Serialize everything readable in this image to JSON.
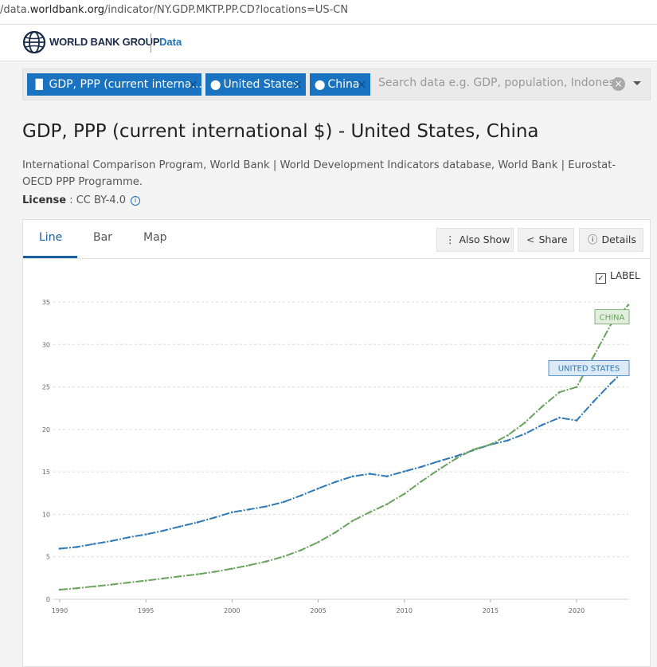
{
  "browser": {
    "url_prefix": "/data.",
    "url_host": "worldbank.org",
    "url_path": "/indicator/NY.GDP.MKTP.PP.CD?locations=US-CN"
  },
  "header": {
    "brand": "WORLD BANK GROUP",
    "section": "Data"
  },
  "search": {
    "chips": [
      {
        "label": "GDP, PPP (current interna...",
        "icon": "bar-chart-icon"
      },
      {
        "label": "United States",
        "icon": "map-marker-icon"
      },
      {
        "label": "China",
        "icon": "map-marker-icon"
      }
    ],
    "placeholder": "Search data e.g. GDP, population, Indonesia"
  },
  "page": {
    "title": "GDP, PPP (current international $) - United States, China",
    "source": "International Comparison Program, World Bank | World Development Indicators database, World Bank | Eurostat-OECD PPP Programme.",
    "license_label": "License",
    "license_value": ": CC BY-4.0"
  },
  "tabs": [
    "Line",
    "Bar",
    "Map"
  ],
  "actions": {
    "also_show": "Also Show",
    "share": "Share",
    "details": "Details"
  },
  "label_toggle": "LABEL",
  "colors": {
    "us": "#2f7ab9",
    "china": "#6aa35e",
    "accent": "#1a73c0"
  },
  "chart_data": {
    "type": "line",
    "title": "",
    "xlabel": "",
    "ylabel": "",
    "xlim": [
      1990,
      2023
    ],
    "ylim": [
      0,
      35
    ],
    "x_ticks": [
      1990,
      1995,
      2000,
      2005,
      2010,
      2015,
      2020
    ],
    "y_ticks": [
      0,
      5,
      10,
      15,
      20,
      25,
      30,
      35
    ],
    "grid": true,
    "x": [
      1990,
      1991,
      1992,
      1993,
      1994,
      1995,
      1996,
      1997,
      1998,
      1999,
      2000,
      2001,
      2002,
      2003,
      2004,
      2005,
      2006,
      2007,
      2008,
      2009,
      2010,
      2011,
      2012,
      2013,
      2014,
      2015,
      2016,
      2017,
      2018,
      2019,
      2020,
      2021,
      2022,
      2023
    ],
    "series": [
      {
        "name": "UNITED STATES",
        "values": [
          5.96,
          6.16,
          6.52,
          6.86,
          7.29,
          7.64,
          8.07,
          8.58,
          9.06,
          9.63,
          10.25,
          10.58,
          10.94,
          11.46,
          12.22,
          13.04,
          13.81,
          14.47,
          14.77,
          14.48,
          15.05,
          15.6,
          16.25,
          16.84,
          17.55,
          18.21,
          18.7,
          19.48,
          20.53,
          21.38,
          21.06,
          23.32,
          25.46,
          27.36
        ]
      },
      {
        "name": "CHINA",
        "values": [
          1.13,
          1.3,
          1.51,
          1.73,
          1.97,
          2.2,
          2.45,
          2.7,
          2.95,
          3.24,
          3.6,
          4.01,
          4.46,
          5.04,
          5.78,
          6.72,
          7.88,
          9.24,
          10.26,
          11.2,
          12.41,
          13.9,
          15.28,
          16.56,
          17.63,
          18.23,
          19.3,
          20.8,
          22.7,
          24.38,
          24.99,
          28.65,
          32.41,
          34.66
        ]
      }
    ]
  }
}
